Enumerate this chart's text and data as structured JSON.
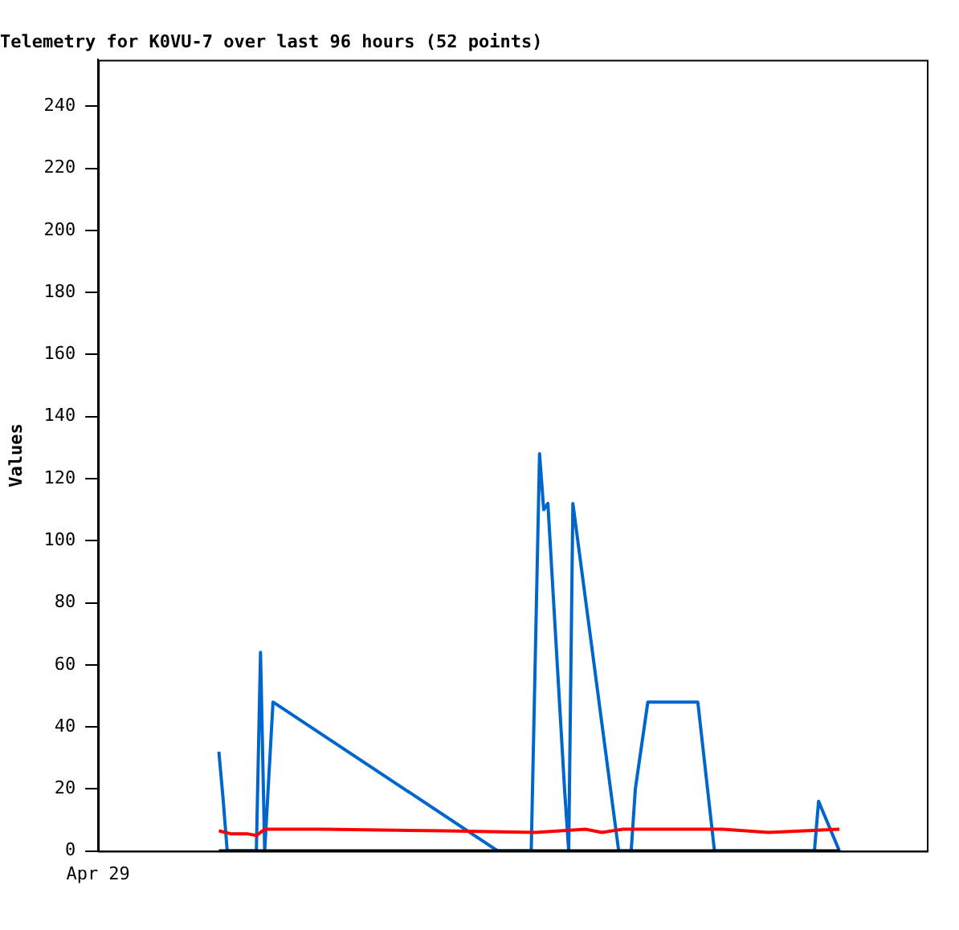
{
  "chart_data": {
    "type": "line",
    "title": "Telemetry for K0VU-7 over last 96 hours (52 points)",
    "ylabel": "Values",
    "categories": [
      "Apr 29",
      null,
      null,
      null,
      null,
      null,
      null,
      null,
      null,
      null,
      null,
      null,
      null,
      null,
      null,
      null,
      null,
      null,
      null,
      null,
      null,
      null,
      null,
      null,
      null,
      null,
      null,
      null,
      null,
      null,
      null,
      null,
      null,
      null,
      null,
      null,
      null,
      null,
      null,
      null,
      null,
      null,
      null,
      null,
      null,
      null,
      null,
      null,
      null,
      null,
      null,
      null,
      null,
      null,
      null,
      null,
      null,
      null,
      null,
      null,
      null,
      null,
      null,
      null,
      null,
      null,
      null,
      null,
      null,
      null,
      null,
      null,
      null,
      null,
      null,
      null,
      null,
      null,
      null,
      null,
      null,
      null,
      null,
      null,
      null,
      null,
      null,
      null,
      null,
      null,
      null,
      null,
      null,
      null,
      null,
      null,
      null,
      null,
      null,
      null,
      null,
      null,
      null,
      null,
      null,
      null,
      null,
      null,
      null,
      null,
      null,
      null,
      null,
      null,
      null,
      null,
      null,
      null,
      null,
      null,
      null,
      null,
      null,
      null,
      null,
      null,
      null,
      null,
      null,
      null,
      null,
      null,
      null,
      null,
      null,
      null,
      null,
      null,
      null,
      null,
      null,
      null,
      null,
      null,
      null,
      null,
      null,
      null,
      null,
      null,
      null,
      null,
      null,
      null,
      null,
      null,
      null,
      null,
      null,
      null,
      null,
      null,
      null,
      null,
      null,
      null,
      null,
      null,
      null,
      null,
      null,
      null,
      null,
      null,
      null,
      null,
      null,
      null,
      null,
      null,
      null,
      null,
      null,
      null,
      null,
      null,
      null,
      null,
      null,
      null,
      null,
      null,
      null,
      null,
      null,
      null,
      null,
      null,
      null,
      null
    ],
    "ylim": [
      0,
      255
    ],
    "yticks": [
      0,
      20,
      40,
      60,
      80,
      100,
      120,
      140,
      160,
      180,
      200,
      220,
      240
    ],
    "grid": false,
    "legend": false,
    "marker": "none",
    "line_style": "solid",
    "series": [
      {
        "color": "#000000",
        "values": [
          null,
          null,
          null,
          null,
          null,
          null,
          null,
          null,
          null,
          null,
          null,
          null,
          null,
          null,
          null,
          null,
          null,
          null,
          null,
          null,
          null,
          null,
          null,
          null,
          null,
          null,
          null,
          null,
          null,
          0,
          null,
          null,
          null,
          null,
          null,
          null,
          null,
          null,
          null,
          null,
          null,
          null,
          null,
          null,
          null,
          null,
          null,
          null,
          null,
          null,
          null,
          null,
          null,
          null,
          null,
          null,
          null,
          null,
          null,
          null,
          null,
          null,
          null,
          null,
          null,
          null,
          null,
          null,
          null,
          null,
          null,
          null,
          null,
          null,
          null,
          null,
          null,
          null,
          null,
          null,
          null,
          null,
          null,
          null,
          null,
          null,
          null,
          null,
          null,
          null,
          null,
          null,
          null,
          null,
          null,
          null,
          null,
          null,
          null,
          null,
          null,
          null,
          null,
          null,
          null,
          null,
          null,
          null,
          null,
          null,
          null,
          null,
          null,
          null,
          null,
          null,
          null,
          null,
          null,
          null,
          null,
          null,
          null,
          null,
          null,
          null,
          null,
          null,
          null,
          null,
          null,
          null,
          null,
          null,
          null,
          null,
          null,
          null,
          null,
          null,
          null,
          null,
          null,
          null,
          null,
          null,
          null,
          null,
          null,
          null,
          null,
          null,
          null,
          null,
          null,
          null,
          null,
          null,
          null,
          null,
          null,
          null,
          null,
          null,
          null,
          null,
          null,
          null,
          null,
          null,
          null,
          null,
          null,
          null,
          null,
          null,
          null,
          null,
          0,
          null,
          null,
          null,
          null,
          null,
          null,
          null,
          null,
          null,
          null,
          null,
          null,
          null,
          null,
          null,
          null,
          null,
          null,
          null,
          null,
          null
        ]
      },
      {
        "color": "#ff0000",
        "values": [
          null,
          null,
          null,
          null,
          null,
          null,
          null,
          null,
          null,
          null,
          null,
          null,
          null,
          null,
          null,
          null,
          null,
          null,
          null,
          null,
          null,
          null,
          null,
          null,
          null,
          null,
          null,
          null,
          null,
          6.5,
          null,
          null,
          5.5,
          null,
          null,
          null,
          5.5,
          null,
          5,
          null,
          7,
          null,
          null,
          null,
          null,
          null,
          null,
          null,
          null,
          null,
          null,
          null,
          null,
          null,
          7,
          null,
          null,
          null,
          null,
          null,
          null,
          null,
          null,
          null,
          null,
          null,
          null,
          null,
          null,
          null,
          null,
          null,
          null,
          null,
          null,
          null,
          null,
          null,
          null,
          null,
          null,
          null,
          null,
          6.5,
          null,
          null,
          null,
          null,
          null,
          null,
          null,
          null,
          null,
          null,
          null,
          null,
          null,
          null,
          null,
          null,
          null,
          null,
          null,
          null,
          null,
          6,
          null,
          null,
          null,
          null,
          null,
          null,
          null,
          null,
          null,
          null,
          null,
          7,
          null,
          null,
          null,
          6,
          null,
          null,
          null,
          null,
          7,
          null,
          null,
          null,
          null,
          null,
          null,
          null,
          null,
          null,
          null,
          null,
          null,
          null,
          null,
          null,
          null,
          null,
          null,
          null,
          null,
          null,
          null,
          null,
          7,
          null,
          null,
          null,
          null,
          null,
          null,
          null,
          null,
          null,
          null,
          6,
          null,
          null,
          null,
          null,
          null,
          null,
          null,
          null,
          null,
          null,
          null,
          null,
          null,
          null,
          null,
          null,
          7,
          null,
          null,
          null,
          null,
          null,
          null,
          null,
          null,
          null,
          null,
          null,
          null,
          null,
          null,
          null,
          null,
          null,
          null,
          null,
          null,
          null
        ]
      },
      {
        "color": "#0066cc",
        "values": [
          null,
          null,
          null,
          null,
          null,
          null,
          null,
          null,
          null,
          null,
          null,
          null,
          null,
          null,
          null,
          null,
          null,
          null,
          null,
          null,
          null,
          null,
          null,
          null,
          null,
          null,
          null,
          null,
          null,
          32,
          17,
          0,
          null,
          null,
          null,
          null,
          null,
          null,
          0,
          64,
          0,
          24,
          48,
          null,
          null,
          null,
          null,
          null,
          null,
          null,
          null,
          null,
          null,
          null,
          null,
          null,
          null,
          null,
          null,
          null,
          null,
          null,
          null,
          null,
          null,
          null,
          null,
          null,
          null,
          null,
          null,
          null,
          null,
          null,
          null,
          null,
          null,
          null,
          null,
          null,
          null,
          null,
          null,
          null,
          null,
          null,
          null,
          null,
          null,
          null,
          null,
          null,
          null,
          null,
          null,
          null,
          0,
          null,
          null,
          null,
          null,
          null,
          null,
          null,
          0,
          null,
          128,
          110,
          112,
          null,
          null,
          null,
          20,
          0,
          112,
          null,
          null,
          null,
          null,
          null,
          null,
          null,
          null,
          null,
          null,
          0,
          null,
          null,
          0,
          20,
          null,
          null,
          48,
          null,
          null,
          null,
          null,
          null,
          null,
          null,
          null,
          null,
          null,
          null,
          48,
          null,
          null,
          null,
          0,
          null,
          null,
          null,
          null,
          null,
          null,
          null,
          null,
          null,
          null,
          null,
          null,
          null,
          null,
          null,
          null,
          null,
          null,
          null,
          null,
          null,
          null,
          null,
          0,
          16,
          null,
          null,
          null,
          null,
          0,
          null,
          null,
          null,
          null,
          null,
          null,
          null,
          null,
          null,
          null,
          null,
          null,
          null,
          null,
          null,
          null,
          null,
          null,
          null,
          null,
          null
        ]
      }
    ]
  }
}
